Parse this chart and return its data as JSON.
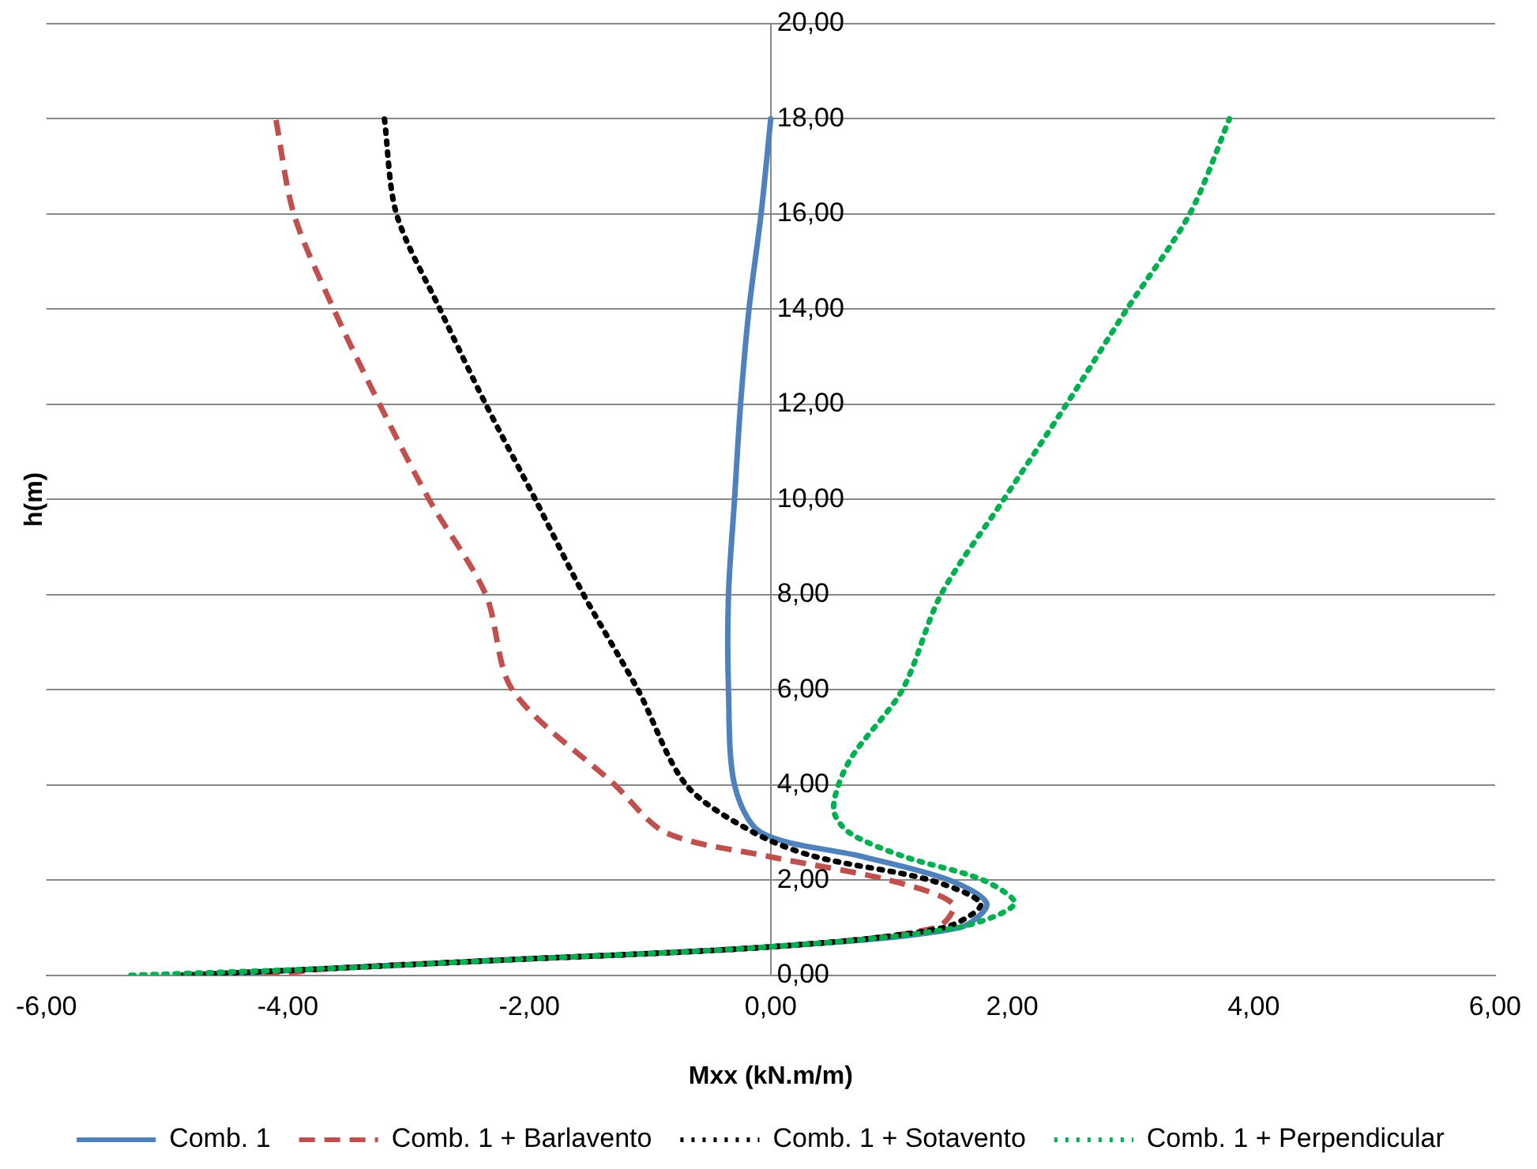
{
  "chart_data": {
    "type": "line",
    "xlabel": "Mxx (kN.m/m)",
    "ylabel": "h(m)",
    "xlim": [
      -6,
      6
    ],
    "xticks": [
      {
        "value": -6,
        "label": "-6,00"
      },
      {
        "value": -4,
        "label": "-4,00"
      },
      {
        "value": -2,
        "label": "-2,00"
      },
      {
        "value": 0,
        "label": "0,00"
      },
      {
        "value": 2,
        "label": "2,00"
      },
      {
        "value": 4,
        "label": "4,00"
      },
      {
        "value": 6,
        "label": "6,00"
      }
    ],
    "ylim": [
      0,
      20
    ],
    "yticks": [
      {
        "value": 0,
        "label": "0,00"
      },
      {
        "value": 2,
        "label": "2,00"
      },
      {
        "value": 4,
        "label": "4,00"
      },
      {
        "value": 6,
        "label": "6,00"
      },
      {
        "value": 8,
        "label": "8,00"
      },
      {
        "value": 10,
        "label": "10,00"
      },
      {
        "value": 12,
        "label": "12,00"
      },
      {
        "value": 14,
        "label": "14,00"
      },
      {
        "value": 16,
        "label": "16,00"
      },
      {
        "value": 18,
        "label": "18,00"
      },
      {
        "value": 20,
        "label": "20,00"
      }
    ],
    "grid": "y",
    "legend": "bottom",
    "marker": "none",
    "series": [
      {
        "name": "Comb. 1",
        "color": "#4f81bd",
        "line_style": "solid",
        "x": [
          -4.8,
          -3.6,
          -2.4,
          0,
          1.56,
          1.79,
          1.48,
          0.75,
          -0.08,
          -0.3,
          -0.35,
          -0.35,
          -0.3,
          -0.25,
          -0.18,
          -0.08,
          0
        ],
        "values": [
          0,
          0.15,
          0.3,
          0.6,
          1,
          1.5,
          2,
          2.5,
          3,
          4,
          6,
          8,
          10,
          12,
          14,
          16,
          18
        ]
      },
      {
        "name": "Comb. 1 + Barlavento",
        "color": "#c0504d",
        "line_style": "dashed",
        "x": [
          -4.2,
          -3.6,
          -2.4,
          0,
          1.37,
          1.51,
          0.98,
          -0.02,
          -0.87,
          -1.29,
          -2.14,
          -2.36,
          -2.83,
          -3.24,
          -3.62,
          -3.95,
          -4.1
        ],
        "values": [
          0,
          0.15,
          0.3,
          0.6,
          1,
          1.5,
          2,
          2.5,
          3,
          4,
          6,
          8,
          10,
          12,
          14,
          16,
          18
        ]
      },
      {
        "name": "Comb. 1 + Sotavento",
        "color": "#000000",
        "line_style": "dotted",
        "x": [
          -4.9,
          -3.6,
          -2.4,
          0,
          1.43,
          1.74,
          1.32,
          0.36,
          -0.14,
          -0.7,
          -1.1,
          -1.55,
          -1.95,
          -2.36,
          -2.74,
          -3.1,
          -3.2
        ],
        "values": [
          0,
          0.15,
          0.3,
          0.6,
          1,
          1.5,
          2,
          2.5,
          3,
          4,
          6,
          8,
          10,
          12,
          14,
          16,
          18
        ]
      },
      {
        "name": "Comb. 1 + Perpendicular",
        "color": "#00b050",
        "line_style": "dotted",
        "x": [
          -5.3,
          -3.6,
          -2.4,
          0,
          1.54,
          2.02,
          1.76,
          1.1,
          0.65,
          0.52,
          0.65,
          1.09,
          1.41,
          1.93,
          2.45,
          2.95,
          3.47,
          3.8
        ],
        "values": [
          0,
          0.15,
          0.3,
          0.6,
          1,
          1.5,
          2,
          2.5,
          3,
          3.5,
          4.5,
          6,
          8,
          10,
          12,
          14,
          16,
          18
        ]
      }
    ]
  }
}
